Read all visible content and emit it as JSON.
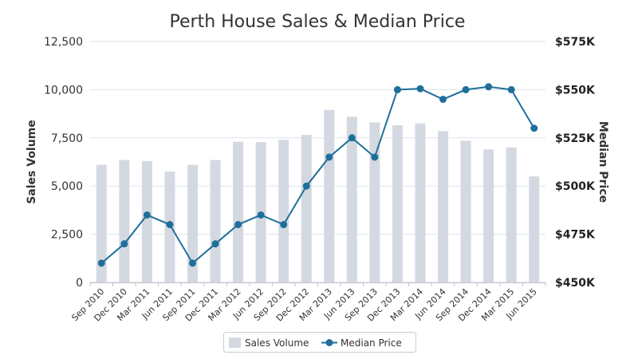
{
  "chart_data": {
    "type": "bar",
    "title": "Perth House Sales & Median Price",
    "categories": [
      "Sep 2010",
      "Dec 2010",
      "Mar 2011",
      "Jun 2011",
      "Sep 2011",
      "Dec 2011",
      "Mar 2012",
      "Jun 2012",
      "Sep 2012",
      "Dec 2012",
      "Mar 2013",
      "Jun 2013",
      "Sep 2013",
      "Dec 2013",
      "Mar 2014",
      "Jun 2014",
      "Sep 2014",
      "Dec 2014",
      "Mar 2015",
      "Jun 2015"
    ],
    "series": [
      {
        "name": "Sales Volume",
        "type": "bar",
        "axis": "left",
        "color": "#d4d9e1",
        "values": [
          6100,
          6350,
          6300,
          5750,
          6100,
          6350,
          7300,
          7280,
          7400,
          7650,
          8950,
          8600,
          8300,
          8150,
          8250,
          7850,
          7350,
          6900,
          7000,
          5500
        ]
      },
      {
        "name": "Median Price",
        "type": "line",
        "axis": "right",
        "color": "#1f6f9a",
        "values": [
          460000,
          470000,
          485000,
          480000,
          460000,
          470000,
          480000,
          485000,
          480000,
          500000,
          515000,
          525000,
          515000,
          550000,
          550500,
          545000,
          550000,
          551500,
          550000,
          530000
        ]
      }
    ],
    "left_axis": {
      "label": "Sales Volume",
      "ylim": [
        0,
        12500
      ],
      "ticks": [
        0,
        2500,
        5000,
        7500,
        10000,
        12500
      ],
      "tick_labels": [
        "0",
        "2,500",
        "5,000",
        "7,500",
        "10,000",
        "12,500"
      ]
    },
    "right_axis": {
      "label": "Median Price",
      "ylim": [
        450000,
        575000
      ],
      "ticks": [
        450000,
        475000,
        500000,
        525000,
        550000,
        575000
      ],
      "tick_labels": [
        "$450K",
        "$475K",
        "$500K",
        "$525K",
        "$550K",
        "$575K"
      ]
    },
    "grid": true,
    "legend": "bottom-center"
  }
}
